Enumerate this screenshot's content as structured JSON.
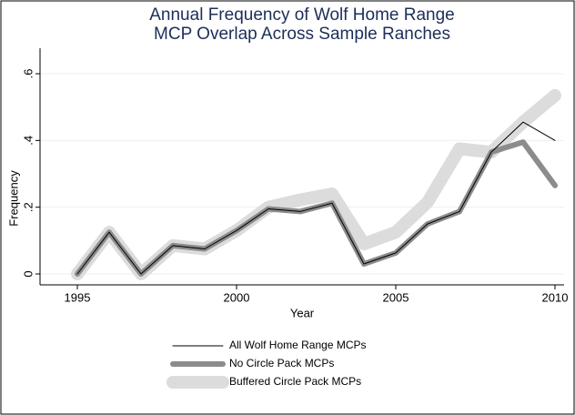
{
  "chart_data": {
    "type": "line",
    "title": [
      "Annual Frequency of Wolf Home Range",
      "MCP Overlap Across Sample Ranches"
    ],
    "x_label": "Year",
    "y_label": "Frequency",
    "x": [
      1995,
      1996,
      1997,
      1998,
      1999,
      2000,
      2001,
      2002,
      2003,
      2004,
      2005,
      2006,
      2007,
      2008,
      2009,
      2010
    ],
    "series": [
      {
        "name": "All Wolf Home Range MCPs",
        "color": "#000000",
        "values": [
          0,
          0.125,
          0,
          0.085,
          0.075,
          0.13,
          0.195,
          0.187,
          0.212,
          0.03,
          0.063,
          0.15,
          0.187,
          0.365,
          0.455,
          0.4
        ]
      },
      {
        "name": "No Circle Pack MCPs",
        "color": "#8c8c8c",
        "values": [
          0,
          0.125,
          0,
          0.085,
          0.075,
          0.13,
          0.195,
          0.187,
          0.212,
          0.03,
          0.063,
          0.15,
          0.187,
          0.365,
          0.395,
          0.265
        ]
      },
      {
        "name": "Buffered Circle Pack MCPs",
        "color": "#dcdcdc",
        "values": [
          0,
          0.125,
          0,
          0.085,
          0.075,
          0.13,
          0.2,
          0.222,
          0.24,
          0.09,
          0.125,
          0.215,
          0.375,
          0.365,
          0.455,
          0.535
        ]
      }
    ],
    "xlim": [
      1995,
      2010
    ],
    "ylim": [
      0,
      0.6
    ],
    "xticks": [
      1995,
      2000,
      2005,
      2010
    ],
    "yticks": [
      0,
      {
        "value": 0.2,
        "label": ".2"
      },
      {
        "value": 0.4,
        "label": ".4"
      },
      {
        "value": 0.6,
        "label": ".6"
      }
    ],
    "grid": true,
    "legend": "bottom"
  }
}
